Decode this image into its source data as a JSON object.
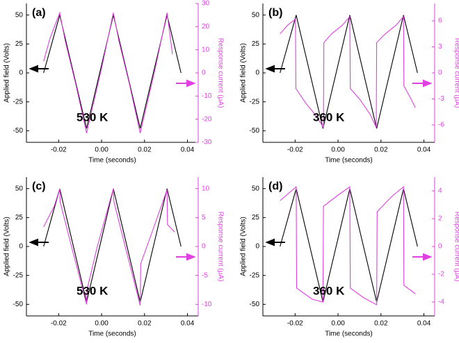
{
  "chart_data": [
    {
      "type": "line",
      "panel_label": "(a)",
      "annotation": "530 K",
      "x_label": "Time (seconds)",
      "y_label": "Applied field (Volts)",
      "y2_label": "Response current (μA)",
      "xlim": [
        -0.035,
        0.045
      ],
      "xticks": [
        -0.02,
        {
          "value": 0,
          "label": "0.00"
        },
        0.02,
        0.04
      ],
      "ylim": [
        -60,
        60
      ],
      "yticks": [
        -50,
        -25,
        0,
        25,
        50
      ],
      "y2lim": [
        -30,
        30
      ],
      "y2ticks": [
        -30,
        -20,
        -10,
        0,
        10,
        20,
        30
      ],
      "series": [
        {
          "color": "#000000",
          "x": [
            -0.027,
            -0.0195,
            -0.007,
            0.0055,
            0.018,
            0.0305,
            0.037
          ],
          "values": [
            0,
            50,
            -48,
            50,
            -48,
            50,
            0
          ]
        },
        {
          "color": "#e040e0",
          "axis": "y2",
          "x": [
            -0.027,
            -0.024,
            -0.0195,
            -0.017,
            -0.012,
            -0.007,
            -0.004,
            0.0,
            0.0055,
            0.008,
            0.013,
            0.018,
            0.021,
            0.025,
            0.0305,
            0.033
          ],
          "values": [
            5,
            15,
            26,
            14,
            -5,
            -26,
            -14,
            2,
            26,
            14,
            -5,
            -26,
            -14,
            2,
            26,
            8
          ]
        }
      ]
    },
    {
      "type": "line",
      "panel_label": "(b)",
      "annotation": "360 K",
      "x_label": "Time (seconds)",
      "y_label": "Applied field (Volts)",
      "y2_label": "Response current (μA)",
      "xlim": [
        -0.035,
        0.045
      ],
      "xticks": [
        -0.02,
        {
          "value": 0,
          "label": "0.00"
        },
        0.02,
        0.04
      ],
      "ylim": [
        -60,
        60
      ],
      "yticks": [
        -50,
        -25,
        0,
        25,
        50
      ],
      "y2lim": [
        -8,
        8
      ],
      "y2ticks": [
        -6,
        -3,
        0,
        3,
        6
      ],
      "series": [
        {
          "color": "#000000",
          "x": [
            -0.027,
            -0.0195,
            -0.007,
            0.0055,
            0.018,
            0.0305,
            0.037
          ],
          "values": [
            0,
            50,
            -48,
            50,
            -48,
            50,
            0
          ]
        },
        {
          "color": "#e040e0",
          "axis": "y2",
          "x": [
            -0.027,
            -0.0235,
            -0.0198,
            -0.0196,
            -0.015,
            -0.01,
            -0.0068,
            -0.0066,
            -0.003,
            0.002,
            0.0055,
            0.0057,
            0.01,
            0.015,
            0.0178,
            0.018,
            0.022,
            0.027,
            0.0305,
            0.0307,
            0.034,
            0.036
          ],
          "values": [
            4.5,
            5.5,
            6.2,
            -1.8,
            -3.5,
            -5,
            -6.3,
            3.5,
            4.5,
            5.5,
            6.5,
            -1.8,
            -3,
            -4.8,
            -6.3,
            3.5,
            4.5,
            5.5,
            6.5,
            -1.5,
            -3,
            -4
          ]
        }
      ]
    },
    {
      "type": "line",
      "panel_label": "(c)",
      "annotation": "530 K",
      "x_label": "Time (seconds)",
      "y_label": "Applied field (Volts)",
      "y2_label": "Response current (μA)",
      "xlim": [
        -0.035,
        0.045
      ],
      "xticks": [
        -0.02,
        {
          "value": 0,
          "label": "0.00"
        },
        0.02,
        0.04
      ],
      "ylim": [
        -60,
        60
      ],
      "yticks": [
        -50,
        -25,
        0,
        25,
        50
      ],
      "y2lim": [
        -12,
        12
      ],
      "y2ticks": [
        -10,
        -5,
        0,
        5,
        10
      ],
      "series": [
        {
          "color": "#000000",
          "x": [
            -0.027,
            -0.0195,
            -0.007,
            0.0055,
            0.018,
            0.0305,
            0.037
          ],
          "values": [
            0,
            50,
            -48,
            50,
            -48,
            50,
            0
          ]
        },
        {
          "color": "#e040e0",
          "axis": "y2",
          "x": [
            -0.027,
            -0.022,
            -0.0195,
            -0.0193,
            -0.014,
            -0.007,
            -0.0068,
            -0.002,
            0.0055,
            0.0057,
            0.011,
            0.018,
            0.0182,
            0.024,
            0.0305,
            0.0307,
            0.034
          ],
          "values": [
            3.4,
            7,
            10,
            7.7,
            0,
            -10,
            -7.5,
            0,
            10,
            7.8,
            0,
            -10.2,
            -3,
            3,
            9.8,
            3.8,
            2.5
          ]
        }
      ]
    },
    {
      "type": "line",
      "panel_label": "(d)",
      "annotation": "360 K",
      "x_label": "Time (seconds)",
      "y_label": "Applied field (Volts)",
      "y2_label": "Response current (μA)",
      "xlim": [
        -0.035,
        0.045
      ],
      "xticks": [
        -0.02,
        {
          "value": 0,
          "label": "0.00"
        },
        0.02,
        0.04
      ],
      "ylim": [
        -60,
        60
      ],
      "yticks": [
        -50,
        -25,
        0,
        25,
        50
      ],
      "y2lim": [
        -5,
        5
      ],
      "y2ticks": [
        -4,
        -2,
        0,
        2,
        4
      ],
      "series": [
        {
          "color": "#000000",
          "x": [
            -0.027,
            -0.0195,
            -0.007,
            0.0055,
            0.018,
            0.0305,
            0.037
          ],
          "values": [
            0,
            50,
            -48,
            50,
            -48,
            50,
            0
          ]
        },
        {
          "color": "#e040e0",
          "axis": "y2",
          "x": [
            -0.027,
            -0.0195,
            -0.0193,
            -0.012,
            -0.007,
            -0.0068,
            0.0,
            0.0055,
            0.0057,
            0.012,
            0.018,
            0.0182,
            0.025,
            0.0305,
            0.0307,
            0.036
          ],
          "values": [
            3.3,
            4.3,
            -3,
            -3.8,
            -4,
            2.9,
            3.7,
            4.3,
            -3,
            -3.7,
            -4.2,
            2.5,
            3.6,
            4.3,
            -2.8,
            -3.4
          ]
        }
      ]
    }
  ]
}
